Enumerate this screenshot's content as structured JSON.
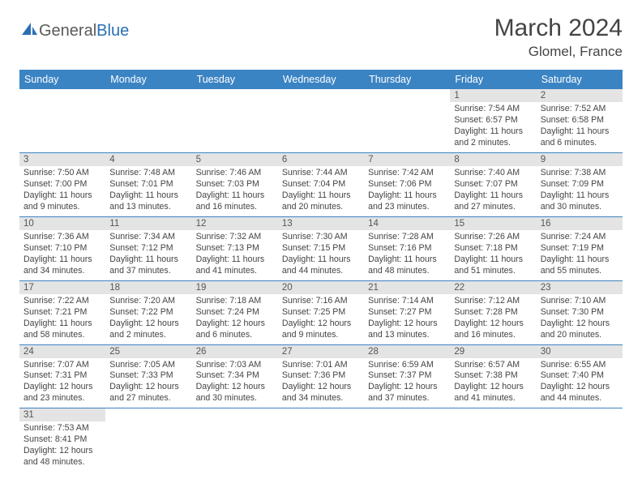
{
  "logo": {
    "general": "General",
    "blue": "Blue"
  },
  "title": "March 2024",
  "location": "Glomel, France",
  "colors": {
    "header_bg": "#3b84c4",
    "header_text": "#ffffff",
    "daynum_bg": "#e4e4e4",
    "row_border": "#3b84c4",
    "body_text": "#444444",
    "logo_gray": "#5a5a5a",
    "logo_blue": "#2a6fb5"
  },
  "weekdays": [
    "Sunday",
    "Monday",
    "Tuesday",
    "Wednesday",
    "Thursday",
    "Friday",
    "Saturday"
  ],
  "weeks": [
    [
      null,
      null,
      null,
      null,
      null,
      {
        "n": "1",
        "sr": "Sunrise: 7:54 AM",
        "ss": "Sunset: 6:57 PM",
        "dl": "Daylight: 11 hours and 2 minutes."
      },
      {
        "n": "2",
        "sr": "Sunrise: 7:52 AM",
        "ss": "Sunset: 6:58 PM",
        "dl": "Daylight: 11 hours and 6 minutes."
      }
    ],
    [
      {
        "n": "3",
        "sr": "Sunrise: 7:50 AM",
        "ss": "Sunset: 7:00 PM",
        "dl": "Daylight: 11 hours and 9 minutes."
      },
      {
        "n": "4",
        "sr": "Sunrise: 7:48 AM",
        "ss": "Sunset: 7:01 PM",
        "dl": "Daylight: 11 hours and 13 minutes."
      },
      {
        "n": "5",
        "sr": "Sunrise: 7:46 AM",
        "ss": "Sunset: 7:03 PM",
        "dl": "Daylight: 11 hours and 16 minutes."
      },
      {
        "n": "6",
        "sr": "Sunrise: 7:44 AM",
        "ss": "Sunset: 7:04 PM",
        "dl": "Daylight: 11 hours and 20 minutes."
      },
      {
        "n": "7",
        "sr": "Sunrise: 7:42 AM",
        "ss": "Sunset: 7:06 PM",
        "dl": "Daylight: 11 hours and 23 minutes."
      },
      {
        "n": "8",
        "sr": "Sunrise: 7:40 AM",
        "ss": "Sunset: 7:07 PM",
        "dl": "Daylight: 11 hours and 27 minutes."
      },
      {
        "n": "9",
        "sr": "Sunrise: 7:38 AM",
        "ss": "Sunset: 7:09 PM",
        "dl": "Daylight: 11 hours and 30 minutes."
      }
    ],
    [
      {
        "n": "10",
        "sr": "Sunrise: 7:36 AM",
        "ss": "Sunset: 7:10 PM",
        "dl": "Daylight: 11 hours and 34 minutes."
      },
      {
        "n": "11",
        "sr": "Sunrise: 7:34 AM",
        "ss": "Sunset: 7:12 PM",
        "dl": "Daylight: 11 hours and 37 minutes."
      },
      {
        "n": "12",
        "sr": "Sunrise: 7:32 AM",
        "ss": "Sunset: 7:13 PM",
        "dl": "Daylight: 11 hours and 41 minutes."
      },
      {
        "n": "13",
        "sr": "Sunrise: 7:30 AM",
        "ss": "Sunset: 7:15 PM",
        "dl": "Daylight: 11 hours and 44 minutes."
      },
      {
        "n": "14",
        "sr": "Sunrise: 7:28 AM",
        "ss": "Sunset: 7:16 PM",
        "dl": "Daylight: 11 hours and 48 minutes."
      },
      {
        "n": "15",
        "sr": "Sunrise: 7:26 AM",
        "ss": "Sunset: 7:18 PM",
        "dl": "Daylight: 11 hours and 51 minutes."
      },
      {
        "n": "16",
        "sr": "Sunrise: 7:24 AM",
        "ss": "Sunset: 7:19 PM",
        "dl": "Daylight: 11 hours and 55 minutes."
      }
    ],
    [
      {
        "n": "17",
        "sr": "Sunrise: 7:22 AM",
        "ss": "Sunset: 7:21 PM",
        "dl": "Daylight: 11 hours and 58 minutes."
      },
      {
        "n": "18",
        "sr": "Sunrise: 7:20 AM",
        "ss": "Sunset: 7:22 PM",
        "dl": "Daylight: 12 hours and 2 minutes."
      },
      {
        "n": "19",
        "sr": "Sunrise: 7:18 AM",
        "ss": "Sunset: 7:24 PM",
        "dl": "Daylight: 12 hours and 6 minutes."
      },
      {
        "n": "20",
        "sr": "Sunrise: 7:16 AM",
        "ss": "Sunset: 7:25 PM",
        "dl": "Daylight: 12 hours and 9 minutes."
      },
      {
        "n": "21",
        "sr": "Sunrise: 7:14 AM",
        "ss": "Sunset: 7:27 PM",
        "dl": "Daylight: 12 hours and 13 minutes."
      },
      {
        "n": "22",
        "sr": "Sunrise: 7:12 AM",
        "ss": "Sunset: 7:28 PM",
        "dl": "Daylight: 12 hours and 16 minutes."
      },
      {
        "n": "23",
        "sr": "Sunrise: 7:10 AM",
        "ss": "Sunset: 7:30 PM",
        "dl": "Daylight: 12 hours and 20 minutes."
      }
    ],
    [
      {
        "n": "24",
        "sr": "Sunrise: 7:07 AM",
        "ss": "Sunset: 7:31 PM",
        "dl": "Daylight: 12 hours and 23 minutes."
      },
      {
        "n": "25",
        "sr": "Sunrise: 7:05 AM",
        "ss": "Sunset: 7:33 PM",
        "dl": "Daylight: 12 hours and 27 minutes."
      },
      {
        "n": "26",
        "sr": "Sunrise: 7:03 AM",
        "ss": "Sunset: 7:34 PM",
        "dl": "Daylight: 12 hours and 30 minutes."
      },
      {
        "n": "27",
        "sr": "Sunrise: 7:01 AM",
        "ss": "Sunset: 7:36 PM",
        "dl": "Daylight: 12 hours and 34 minutes."
      },
      {
        "n": "28",
        "sr": "Sunrise: 6:59 AM",
        "ss": "Sunset: 7:37 PM",
        "dl": "Daylight: 12 hours and 37 minutes."
      },
      {
        "n": "29",
        "sr": "Sunrise: 6:57 AM",
        "ss": "Sunset: 7:38 PM",
        "dl": "Daylight: 12 hours and 41 minutes."
      },
      {
        "n": "30",
        "sr": "Sunrise: 6:55 AM",
        "ss": "Sunset: 7:40 PM",
        "dl": "Daylight: 12 hours and 44 minutes."
      }
    ],
    [
      {
        "n": "31",
        "sr": "Sunrise: 7:53 AM",
        "ss": "Sunset: 8:41 PM",
        "dl": "Daylight: 12 hours and 48 minutes."
      },
      null,
      null,
      null,
      null,
      null,
      null
    ]
  ]
}
